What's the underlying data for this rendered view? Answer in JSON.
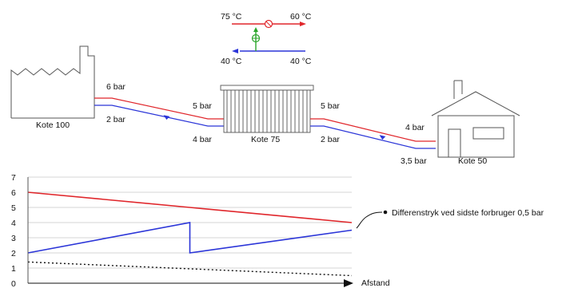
{
  "colors": {
    "supply": "#e0262b",
    "return": "#2b35d8",
    "pump": "#2aa52a",
    "outline": "#555555",
    "grid": "#d6d6d6"
  },
  "inset": {
    "top_left": "75 °C",
    "top_right": "60 °C",
    "bottom_left": "40 °C",
    "bottom_right": "40 °C"
  },
  "labels": {
    "factory_supply": "6 bar",
    "factory_return": "2 bar",
    "factory_name": "Kote 100",
    "consumer_in_supply": "5 bar",
    "consumer_in_return": "4 bar",
    "consumer_out_supply": "5 bar",
    "consumer_out_return": "2 bar",
    "consumer_name": "Kote 75",
    "house_supply": "4 bar",
    "house_return": "3,5 bar",
    "house_name": "Kote 50"
  },
  "chart_data": {
    "type": "line",
    "y_ticks": [
      "0",
      "1",
      "2",
      "3",
      "4",
      "5",
      "6",
      "7"
    ],
    "ylim": [
      0,
      7
    ],
    "xlim": [
      0,
      1
    ],
    "xlabel": "Afstand",
    "grid": true,
    "annotation": "Differenstryk ved sidste forbruger 0,5 bar",
    "series": [
      {
        "key": "supply",
        "style": "solid",
        "color": "#e0262b",
        "points": [
          [
            0,
            6
          ],
          [
            0.5,
            5
          ],
          [
            1,
            4
          ]
        ]
      },
      {
        "key": "return",
        "style": "solid",
        "color": "#2b35d8",
        "points": [
          [
            0,
            2
          ],
          [
            0.5,
            4
          ],
          [
            0.5,
            2
          ],
          [
            1,
            3.5
          ]
        ]
      },
      {
        "key": "terrain",
        "style": "dotted",
        "color": "#111111",
        "points": [
          [
            0,
            1.4
          ],
          [
            1,
            0.5
          ]
        ]
      }
    ]
  }
}
